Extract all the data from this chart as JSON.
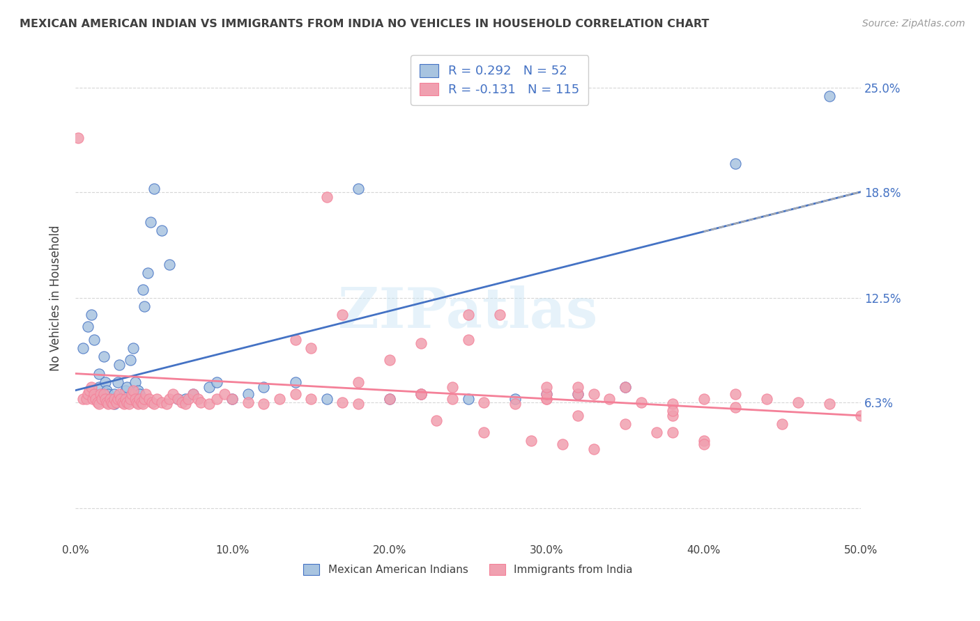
{
  "title": "MEXICAN AMERICAN INDIAN VS IMMIGRANTS FROM INDIA NO VEHICLES IN HOUSEHOLD CORRELATION CHART",
  "source": "Source: ZipAtlas.com",
  "ylabel": "No Vehicles in Household",
  "yticks": [
    0.0,
    0.063,
    0.125,
    0.188,
    0.25
  ],
  "ytick_labels": [
    "",
    "6.3%",
    "12.5%",
    "18.8%",
    "25.0%"
  ],
  "xmin": 0.0,
  "xmax": 0.5,
  "ymin": -0.02,
  "ymax": 0.27,
  "blue_R": 0.292,
  "blue_N": 52,
  "pink_R": -0.131,
  "pink_N": 115,
  "blue_color": "#a8c4e0",
  "pink_color": "#f0a0b0",
  "blue_line_color": "#4472c4",
  "pink_line_color": "#f48098",
  "legend_text_color": "#4472c4",
  "title_color": "#404040",
  "watermark": "ZIPatlas",
  "blue_line_y0": 0.07,
  "blue_line_y1": 0.188,
  "pink_line_y0": 0.08,
  "pink_line_y1": 0.055,
  "blue_scatter_x": [
    0.005,
    0.008,
    0.01,
    0.012,
    0.015,
    0.015,
    0.017,
    0.018,
    0.019,
    0.02,
    0.021,
    0.022,
    0.023,
    0.025,
    0.025,
    0.027,
    0.028,
    0.03,
    0.032,
    0.033,
    0.035,
    0.037,
    0.038,
    0.04,
    0.041,
    0.043,
    0.044,
    0.046,
    0.048,
    0.05,
    0.055,
    0.06,
    0.065,
    0.07,
    0.075,
    0.085,
    0.09,
    0.1,
    0.11,
    0.12,
    0.14,
    0.16,
    0.18,
    0.2,
    0.22,
    0.25,
    0.28,
    0.3,
    0.32,
    0.35,
    0.42,
    0.48
  ],
  "blue_scatter_y": [
    0.095,
    0.108,
    0.115,
    0.1,
    0.072,
    0.08,
    0.065,
    0.09,
    0.075,
    0.07,
    0.068,
    0.065,
    0.063,
    0.062,
    0.068,
    0.075,
    0.085,
    0.065,
    0.07,
    0.072,
    0.088,
    0.095,
    0.075,
    0.07,
    0.068,
    0.13,
    0.12,
    0.14,
    0.17,
    0.19,
    0.165,
    0.145,
    0.065,
    0.065,
    0.068,
    0.072,
    0.075,
    0.065,
    0.068,
    0.072,
    0.075,
    0.065,
    0.19,
    0.065,
    0.068,
    0.065,
    0.065,
    0.068,
    0.068,
    0.072,
    0.205,
    0.245
  ],
  "pink_scatter_x": [
    0.002,
    0.005,
    0.007,
    0.008,
    0.009,
    0.01,
    0.011,
    0.012,
    0.013,
    0.014,
    0.015,
    0.016,
    0.017,
    0.018,
    0.019,
    0.02,
    0.021,
    0.022,
    0.023,
    0.024,
    0.025,
    0.026,
    0.027,
    0.028,
    0.029,
    0.03,
    0.031,
    0.032,
    0.033,
    0.034,
    0.035,
    0.036,
    0.037,
    0.038,
    0.039,
    0.04,
    0.041,
    0.042,
    0.043,
    0.044,
    0.045,
    0.047,
    0.049,
    0.05,
    0.052,
    0.055,
    0.058,
    0.06,
    0.062,
    0.065,
    0.068,
    0.07,
    0.072,
    0.075,
    0.078,
    0.08,
    0.085,
    0.09,
    0.095,
    0.1,
    0.11,
    0.12,
    0.13,
    0.14,
    0.15,
    0.16,
    0.17,
    0.18,
    0.2,
    0.22,
    0.24,
    0.26,
    0.28,
    0.3,
    0.32,
    0.34,
    0.36,
    0.38,
    0.4,
    0.42,
    0.44,
    0.46,
    0.48,
    0.5,
    0.15,
    0.17,
    0.25,
    0.35,
    0.38,
    0.25,
    0.3,
    0.3,
    0.22,
    0.18,
    0.32,
    0.32,
    0.38,
    0.42,
    0.45,
    0.22,
    0.24,
    0.27,
    0.3,
    0.33,
    0.35,
    0.37,
    0.4,
    0.14,
    0.2,
    0.23,
    0.26,
    0.29,
    0.31,
    0.33,
    0.38,
    0.4
  ],
  "pink_scatter_y": [
    0.22,
    0.065,
    0.065,
    0.068,
    0.07,
    0.072,
    0.065,
    0.068,
    0.065,
    0.063,
    0.062,
    0.068,
    0.065,
    0.068,
    0.065,
    0.063,
    0.062,
    0.065,
    0.063,
    0.062,
    0.065,
    0.063,
    0.065,
    0.068,
    0.065,
    0.063,
    0.062,
    0.065,
    0.063,
    0.062,
    0.065,
    0.068,
    0.07,
    0.065,
    0.063,
    0.062,
    0.065,
    0.063,
    0.062,
    0.065,
    0.068,
    0.065,
    0.063,
    0.062,
    0.065,
    0.063,
    0.062,
    0.065,
    0.068,
    0.065,
    0.063,
    0.062,
    0.065,
    0.068,
    0.065,
    0.063,
    0.062,
    0.065,
    0.068,
    0.065,
    0.063,
    0.062,
    0.065,
    0.068,
    0.065,
    0.185,
    0.063,
    0.062,
    0.065,
    0.068,
    0.065,
    0.063,
    0.062,
    0.065,
    0.068,
    0.065,
    0.063,
    0.062,
    0.065,
    0.068,
    0.065,
    0.063,
    0.062,
    0.055,
    0.095,
    0.115,
    0.1,
    0.072,
    0.055,
    0.115,
    0.065,
    0.068,
    0.068,
    0.075,
    0.072,
    0.055,
    0.058,
    0.06,
    0.05,
    0.098,
    0.072,
    0.115,
    0.072,
    0.068,
    0.05,
    0.045,
    0.04,
    0.1,
    0.088,
    0.052,
    0.045,
    0.04,
    0.038,
    0.035,
    0.045,
    0.038
  ]
}
